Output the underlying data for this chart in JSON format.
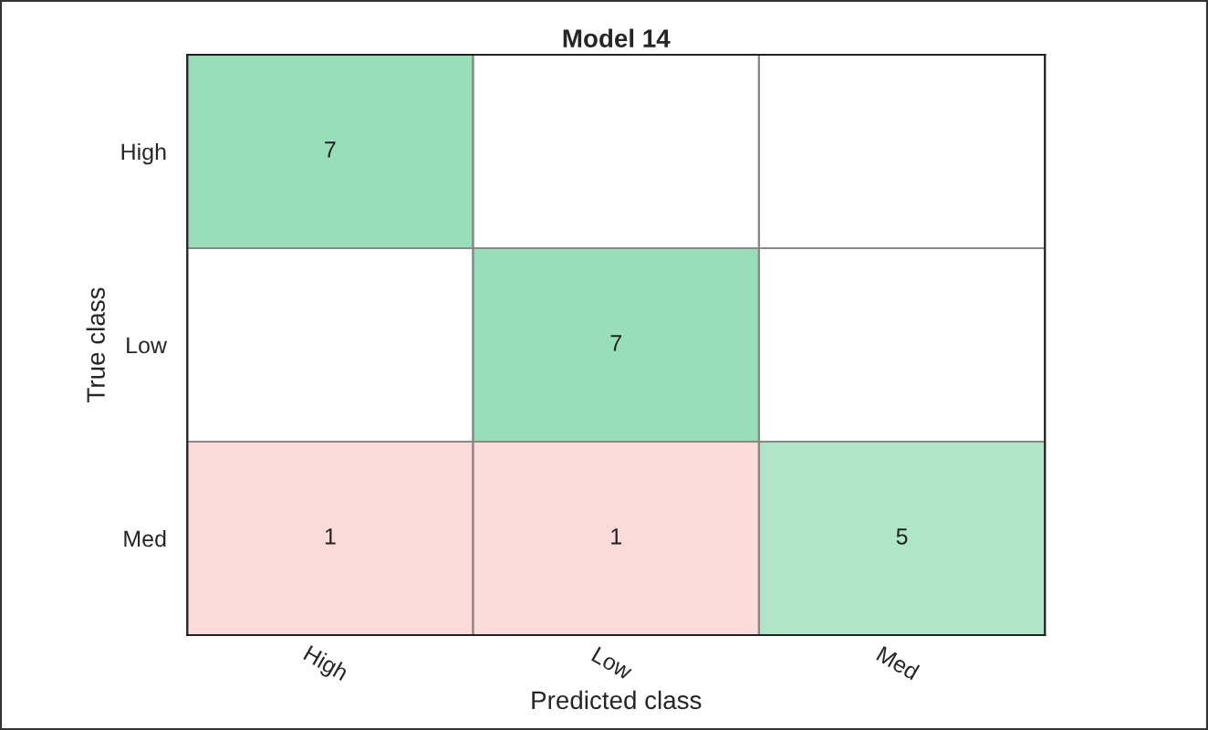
{
  "chart_data": {
    "type": "heatmap",
    "title": "Model 14",
    "xlabel": "Predicted class",
    "ylabel": "True class",
    "categories": [
      "High",
      "Low",
      "Med"
    ],
    "y_categories": [
      "High",
      "Low",
      "Med"
    ],
    "cells": [
      [
        7,
        null,
        null
      ],
      [
        null,
        7,
        null
      ],
      [
        1,
        1,
        5
      ]
    ],
    "colors": [
      [
        "#98dfb9",
        null,
        null
      ],
      [
        null,
        "#98dfb9",
        null
      ],
      [
        "#fddbdb",
        "#fddbdb",
        "#b0e6c8"
      ]
    ],
    "data_labels": true
  }
}
